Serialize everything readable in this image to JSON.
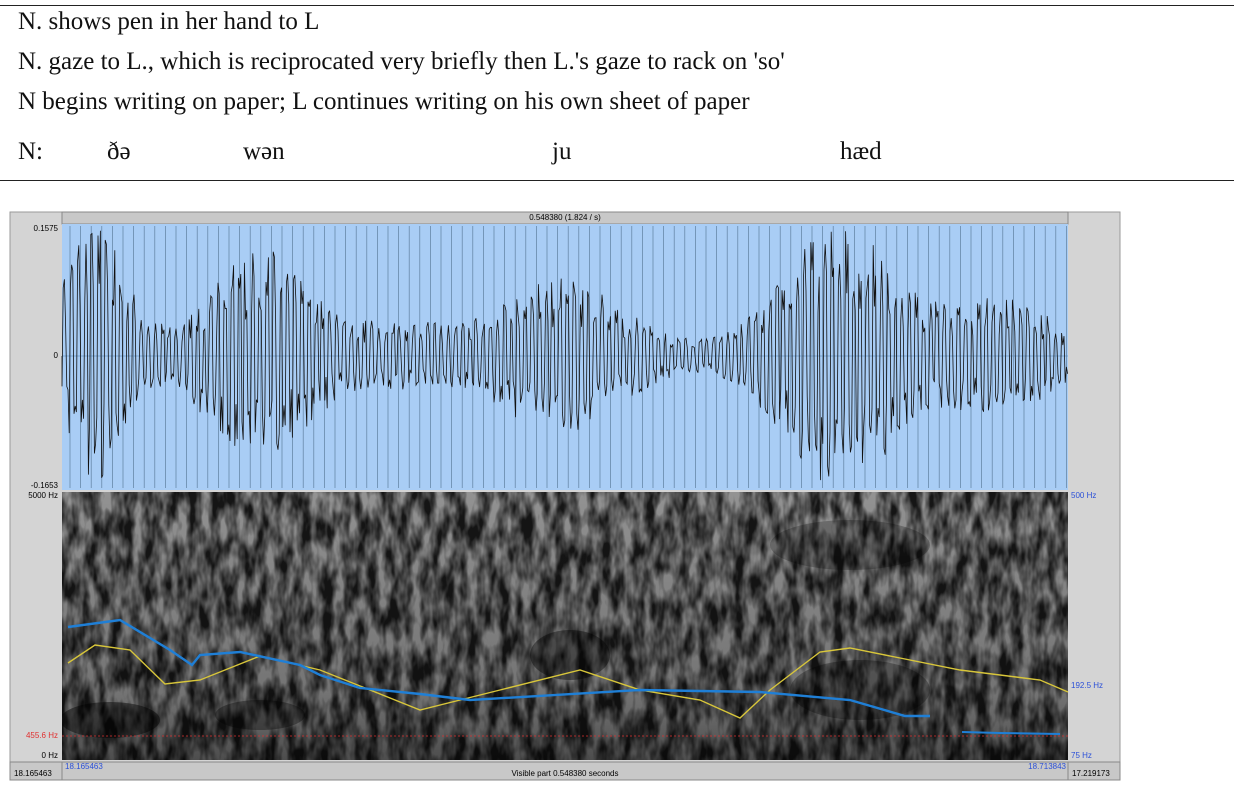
{
  "transcript": {
    "lines": [
      "N. shows pen in her hand to L",
      "N. gaze to L., which is reciprocated very briefly then L.'s gaze to rack on 'so'",
      "N begins writing on paper; L continues writing on his own sheet of paper"
    ],
    "speaker": "N:",
    "words": [
      "ðə",
      "wən",
      "ju",
      "hæd"
    ]
  },
  "praat": {
    "selection_label": "0.548380 (1.824 / s)",
    "waveform": {
      "max_label": "0.1575",
      "zero_label": "0",
      "min_label": "-0.1653"
    },
    "spectrogram": {
      "top_label": "5000 Hz",
      "bottom_label": "0 Hz",
      "cursor_label": "455.6 Hz",
      "right_top_label": "500 Hz",
      "right_mid_label": "192.5 Hz",
      "right_bottom_label": "75 Hz"
    },
    "footer": {
      "left_total": "18.165463",
      "visible_start": "18.165463",
      "visible_label": "Visible part 0.548380 seconds",
      "visible_end": "18.713843",
      "right_total": "17.219173"
    }
  }
}
